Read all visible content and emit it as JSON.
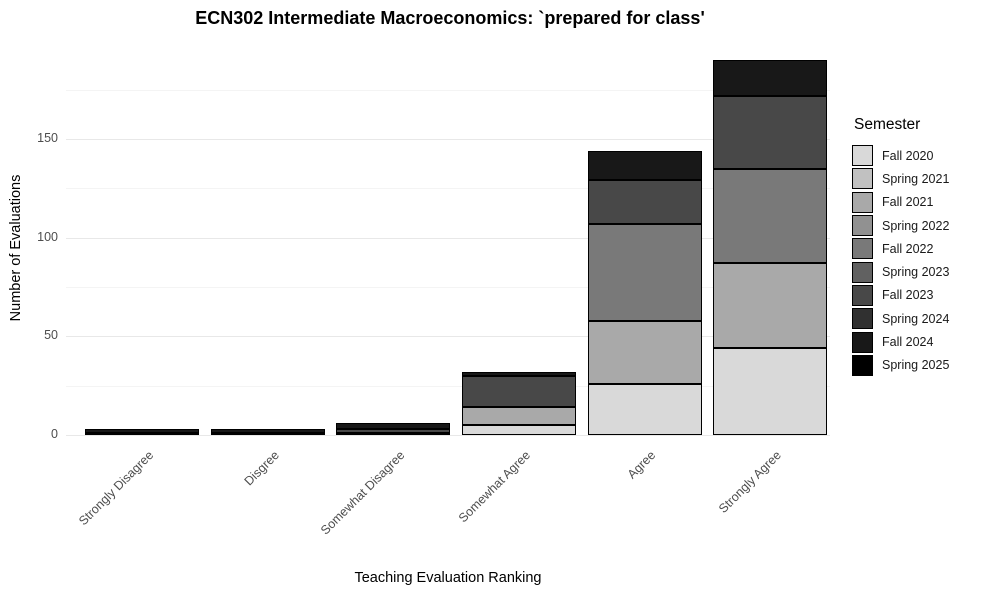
{
  "chart_data": {
    "type": "bar",
    "stacked": true,
    "title": "ECN302 Intermediate Macroeconomics: `prepared for class'",
    "xlabel": "Teaching Evaluation Ranking",
    "ylabel": "Number of Evaluations",
    "legend_title": "Semester",
    "legend_position": "right",
    "categories": [
      "Strongly Disagree",
      "Disgree",
      "Somewhat Disagree",
      "Somewhat Agree",
      "Agree",
      "Strongly Agree"
    ],
    "series": [
      {
        "name": "Fall 2020",
        "color": "#d9d9d9",
        "values": [
          0,
          0,
          1,
          5,
          26,
          44
        ]
      },
      {
        "name": "Spring 2021",
        "color": "#c1c1c1",
        "values": [
          0,
          0,
          0,
          0,
          0,
          0
        ]
      },
      {
        "name": "Fall 2021",
        "color": "#a9a9a9",
        "values": [
          0,
          0,
          0,
          9,
          32,
          43
        ]
      },
      {
        "name": "Spring 2022",
        "color": "#919191",
        "values": [
          0,
          0,
          0,
          0,
          0,
          0
        ]
      },
      {
        "name": "Fall 2022",
        "color": "#797979",
        "values": [
          0,
          0,
          0,
          0,
          49,
          48
        ]
      },
      {
        "name": "Spring 2023",
        "color": "#616161",
        "values": [
          0,
          0,
          0,
          0,
          0,
          0
        ]
      },
      {
        "name": "Fall 2023",
        "color": "#484848",
        "values": [
          1,
          1,
          2,
          16,
          22,
          37
        ]
      },
      {
        "name": "Spring 2024",
        "color": "#303030",
        "values": [
          0,
          0,
          0,
          0,
          0,
          0
        ]
      },
      {
        "name": "Fall 2024",
        "color": "#181818",
        "values": [
          2,
          2,
          3,
          2,
          15,
          18
        ]
      },
      {
        "name": "Spring 2025",
        "color": "#000000",
        "values": [
          0,
          0,
          0,
          0,
          0,
          0
        ]
      }
    ],
    "totals": [
      3,
      3,
      6,
      32,
      144,
      190
    ],
    "yticks": [
      0,
      50,
      100,
      150
    ],
    "yticks_minor": [
      25,
      75,
      125,
      175
    ],
    "ylim": [
      0,
      197
    ],
    "grid": "horizontal major and minor, light gray on white",
    "bar_border_color": "#000000",
    "background_color": "#ffffff"
  }
}
